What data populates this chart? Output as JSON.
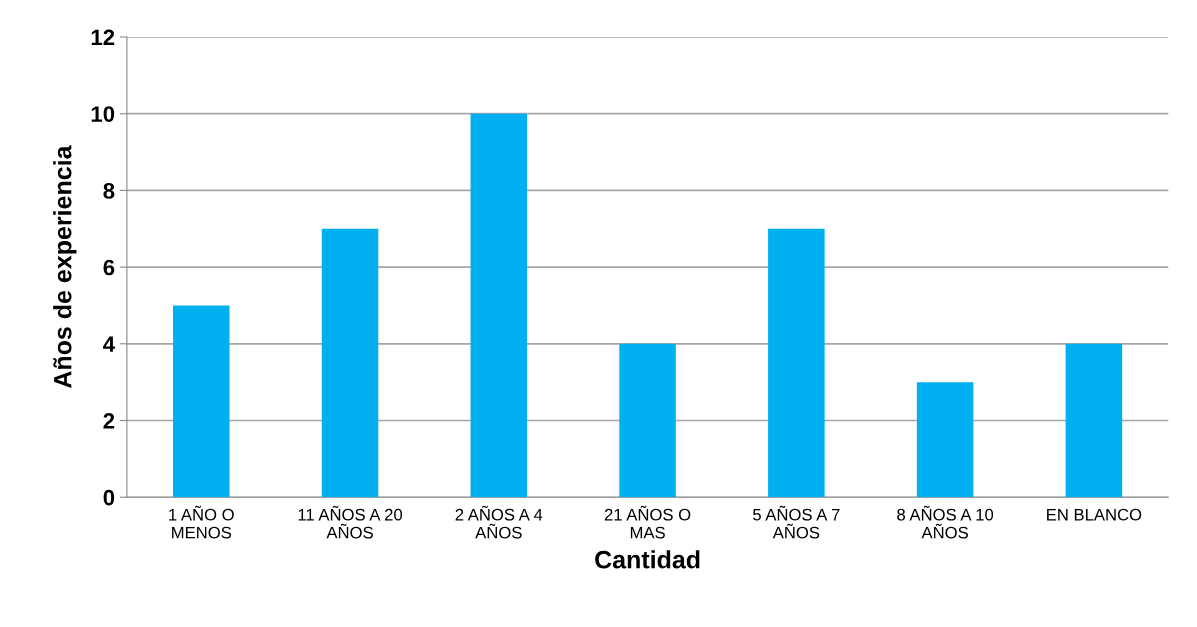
{
  "chart_data": {
    "type": "bar",
    "xlabel": "Cantidad",
    "ylabel": "Años de experiencia",
    "categories": [
      "1 AÑO O\nMENOS",
      "11 AÑOS A 20\nAÑOS",
      "2 AÑOS A 4\nAÑOS",
      "21 AÑOS O\nMAS",
      "5 AÑOS A 7\nAÑOS",
      "8 AÑOS A 10\nAÑOS",
      "EN BLANCO"
    ],
    "values": [
      5,
      7,
      10,
      4,
      7,
      3,
      4
    ],
    "color": "#00b0f0",
    "ylim": [
      0,
      12
    ],
    "yticks": [
      0,
      2,
      4,
      6,
      8,
      10,
      12
    ],
    "grid": "y"
  }
}
